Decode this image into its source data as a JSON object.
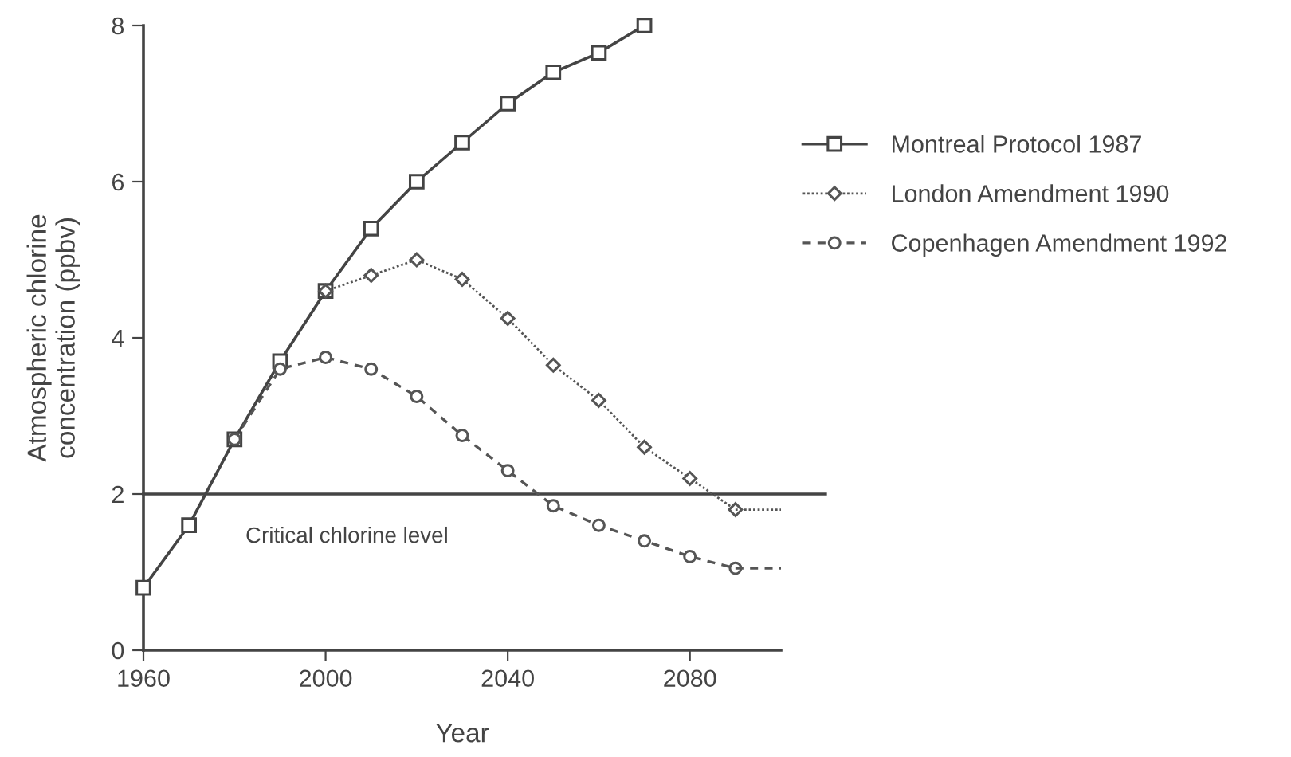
{
  "chart_data": {
    "type": "line",
    "xlabel": "Year",
    "ylabel": "Atmospheric chlorine\nconcentration (ppbv)",
    "xlim": [
      1960,
      2100
    ],
    "xticks": [
      1960,
      2000,
      2040,
      2080
    ],
    "ylim": [
      0,
      8
    ],
    "yticks": [
      0,
      2,
      4,
      6,
      8
    ],
    "grid": false,
    "legend": "right",
    "series": [
      {
        "name": "Montreal Protocol 1987",
        "color": "#444444",
        "marker": "square",
        "line_style": "solid",
        "x": [
          1960,
          1970,
          1980,
          1990,
          2000,
          2010,
          2020,
          2030,
          2040,
          2050,
          2060,
          2070
        ],
        "values": [
          0.8,
          1.6,
          2.7,
          3.7,
          4.6,
          5.4,
          6.0,
          6.5,
          7.0,
          7.4,
          7.65,
          8.0
        ]
      },
      {
        "name": "London Amendment 1990",
        "color": "#555555",
        "marker": "diamond",
        "line_style": "dotted",
        "x": [
          2000,
          2010,
          2020,
          2030,
          2040,
          2050,
          2060,
          2070,
          2080,
          2090
        ],
        "values": [
          4.6,
          4.8,
          5.0,
          4.75,
          4.25,
          3.65,
          3.2,
          2.6,
          2.2,
          1.8
        ]
      },
      {
        "name": "Copenhagen Amendment 1992",
        "color": "#555555",
        "marker": "circle",
        "line_style": "dashed",
        "x": [
          1980,
          1990,
          2000,
          2010,
          2020,
          2030,
          2040,
          2050,
          2060,
          2070,
          2080,
          2090
        ],
        "values": [
          2.7,
          3.6,
          3.75,
          3.6,
          3.25,
          2.75,
          2.3,
          1.85,
          1.6,
          1.4,
          1.2,
          1.05
        ]
      },
      {
        "color": "#555555",
        "marker": "none",
        "line_style": "dotted",
        "x": [
          2090,
          2100
        ],
        "values": [
          1.8,
          1.8
        ]
      },
      {
        "color": "#555555",
        "marker": "none",
        "line_style": "dashed",
        "x": [
          2090,
          2100
        ],
        "values": [
          1.05,
          1.05
        ]
      }
    ],
    "ref_lines": [
      {
        "axis": "y",
        "value": 2,
        "label": "Critical chlorine level",
        "color": "#444444"
      }
    ]
  }
}
